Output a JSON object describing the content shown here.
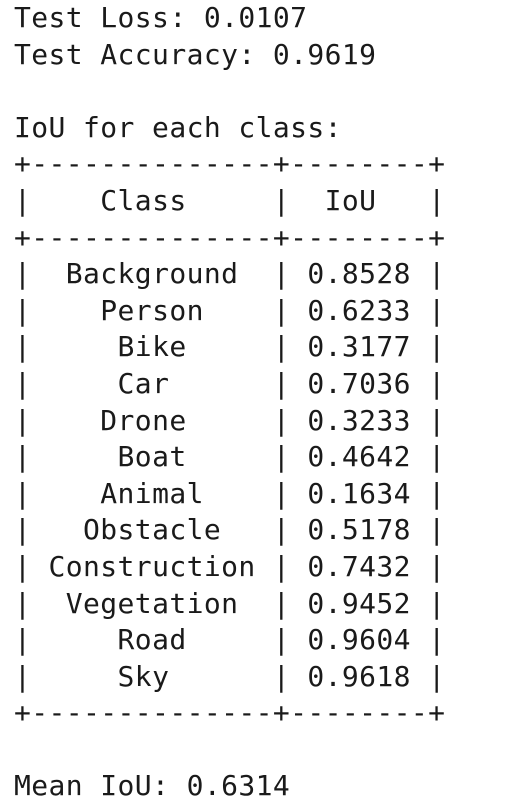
{
  "test_loss": "Test Loss: 0.0107",
  "test_accuracy": "Test Accuracy: 0.9619",
  "iou_heading": "IoU for each class:",
  "table": {
    "border_line": "+--------------+--------+",
    "header": {
      "class": "Class",
      "iou": "IoU"
    },
    "rows": [
      {
        "class": "Background",
        "iou": "0.8528"
      },
      {
        "class": "Person",
        "iou": "0.6233"
      },
      {
        "class": "Bike",
        "iou": "0.3177"
      },
      {
        "class": "Car",
        "iou": "0.7036"
      },
      {
        "class": "Drone",
        "iou": "0.3233"
      },
      {
        "class": "Boat",
        "iou": "0.4642"
      },
      {
        "class": "Animal",
        "iou": "0.1634"
      },
      {
        "class": "Obstacle",
        "iou": "0.5178"
      },
      {
        "class": "Construction",
        "iou": "0.7432"
      },
      {
        "class": "Vegetation",
        "iou": "0.9452"
      },
      {
        "class": "Road",
        "iou": "0.9604"
      },
      {
        "class": "Sky",
        "iou": "0.9618"
      }
    ]
  },
  "mean_iou": "Mean IoU: 0.6314"
}
